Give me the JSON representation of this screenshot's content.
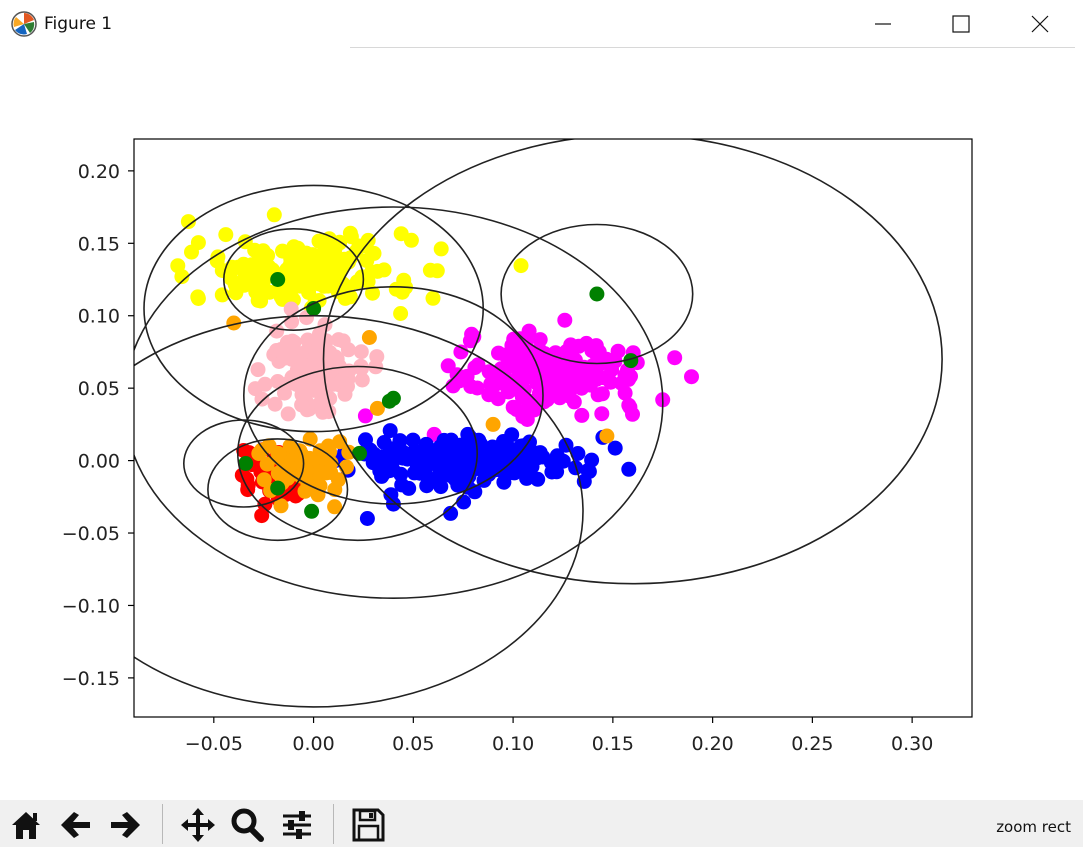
{
  "window": {
    "title": "Figure 1",
    "app_icon": "matplotlib-icon",
    "controls": [
      {
        "name": "minimize-button",
        "icon": "minimize-icon"
      },
      {
        "name": "maximize-button",
        "icon": "maximize-icon"
      },
      {
        "name": "close-button",
        "icon": "close-icon"
      }
    ]
  },
  "toolbar": {
    "buttons": [
      {
        "name": "home-button",
        "icon": "home-icon"
      },
      {
        "name": "back-button",
        "icon": "arrow-left-icon"
      },
      {
        "name": "forward-button",
        "icon": "arrow-right-icon"
      },
      {
        "name": "pan-button",
        "icon": "move-icon"
      },
      {
        "name": "zoom-button",
        "icon": "magnifier-icon"
      },
      {
        "name": "configure-subplots-button",
        "icon": "sliders-icon"
      },
      {
        "name": "save-button",
        "icon": "floppy-disk-icon"
      }
    ],
    "status": "zoom rect"
  },
  "chart_data": {
    "type": "scatter",
    "title": "",
    "xlabel": "",
    "ylabel": "",
    "xlim": [
      -0.09,
      0.33
    ],
    "ylim": [
      -0.177,
      0.222
    ],
    "grid": false,
    "legend": "none",
    "x_ticks": [
      -0.05,
      0.0,
      0.05,
      0.1,
      0.15,
      0.2,
      0.25,
      0.3
    ],
    "x_tick_labels": [
      "−0.05",
      "0.00",
      "0.05",
      "0.10",
      "0.15",
      "0.20",
      "0.25",
      "0.30"
    ],
    "y_ticks": [
      0.2,
      0.15,
      0.1,
      0.05,
      0.0,
      -0.05,
      -0.1,
      -0.15
    ],
    "y_tick_labels": [
      "0.20",
      "0.15",
      "0.10",
      "0.05",
      "0.00",
      "−0.05",
      "−0.10",
      "−0.15"
    ],
    "clusters": [
      {
        "color": "#ffff00",
        "center": [
          -0.005,
          0.13
        ],
        "spread": [
          0.028,
          0.012
        ],
        "count": 180
      },
      {
        "color": "#ff00ff",
        "center": [
          0.12,
          0.06
        ],
        "spread": [
          0.022,
          0.012
        ],
        "count": 180
      },
      {
        "color": "#0000ff",
        "center": [
          0.075,
          0.0
        ],
        "spread": [
          0.028,
          0.009
        ],
        "count": 240
      },
      {
        "color": "#ffb6c1",
        "center": [
          0.0,
          0.065
        ],
        "spread": [
          0.012,
          0.014
        ],
        "count": 120
      },
      {
        "color": "#ff0000",
        "center": [
          -0.02,
          -0.01
        ],
        "spread": [
          0.008,
          0.01
        ],
        "count": 45
      },
      {
        "color": "#ffa500",
        "center": [
          -0.005,
          -0.005
        ],
        "spread": [
          0.01,
          0.01
        ],
        "count": 70
      }
    ],
    "outliers": [
      {
        "color": "#ffff00",
        "x": -0.044,
        "y": 0.156
      },
      {
        "color": "#ffff00",
        "x": -0.066,
        "y": 0.127
      },
      {
        "color": "#ffff00",
        "x": 0.062,
        "y": 0.131
      },
      {
        "color": "#ffff00",
        "x": -0.058,
        "y": 0.113
      },
      {
        "color": "#ff00ff",
        "x": 0.181,
        "y": 0.071
      },
      {
        "color": "#ff00ff",
        "x": 0.175,
        "y": 0.042
      },
      {
        "color": "#ff00ff",
        "x": 0.073,
        "y": 0.055
      },
      {
        "color": "#0000ff",
        "x": 0.158,
        "y": -0.006
      },
      {
        "color": "#0000ff",
        "x": 0.027,
        "y": -0.04
      },
      {
        "color": "#0000ff",
        "x": 0.145,
        "y": 0.016
      },
      {
        "color": "#0000ff",
        "x": 0.04,
        "y": -0.03
      },
      {
        "color": "#ff0000",
        "x": -0.026,
        "y": -0.038
      },
      {
        "color": "#ff0000",
        "x": -0.033,
        "y": -0.02
      },
      {
        "color": "#ffa500",
        "x": 0.032,
        "y": 0.036
      },
      {
        "color": "#ffa500",
        "x": 0.147,
        "y": 0.017
      },
      {
        "color": "#ffa500",
        "x": 0.09,
        "y": 0.025
      },
      {
        "color": "#ffa500",
        "x": -0.04,
        "y": 0.095
      },
      {
        "color": "#ffa500",
        "x": 0.028,
        "y": 0.085
      }
    ],
    "centers": {
      "color": "#008000",
      "points": [
        {
          "x": -0.018,
          "y": 0.125
        },
        {
          "x": 0.0,
          "y": 0.105
        },
        {
          "x": 0.142,
          "y": 0.115
        },
        {
          "x": 0.159,
          "y": 0.069
        },
        {
          "x": 0.038,
          "y": 0.041
        },
        {
          "x": 0.04,
          "y": 0.043
        },
        {
          "x": 0.023,
          "y": 0.005
        },
        {
          "x": -0.034,
          "y": -0.002
        },
        {
          "x": -0.018,
          "y": -0.019
        },
        {
          "x": -0.001,
          "y": -0.035
        }
      ]
    },
    "circles": [
      {
        "cx": -0.01,
        "cy": 0.125,
        "r": 0.035
      },
      {
        "cx": 0.0,
        "cy": 0.105,
        "r": 0.085
      },
      {
        "cx": 0.142,
        "cy": 0.115,
        "r": 0.048
      },
      {
        "cx": 0.16,
        "cy": 0.07,
        "r": 0.155
      },
      {
        "cx": 0.04,
        "cy": 0.045,
        "r": 0.075
      },
      {
        "cx": 0.022,
        "cy": 0.005,
        "r": 0.06
      },
      {
        "cx": -0.035,
        "cy": -0.002,
        "r": 0.03
      },
      {
        "cx": -0.018,
        "cy": -0.02,
        "r": 0.035
      },
      {
        "cx": 0.0,
        "cy": -0.035,
        "r": 0.135
      },
      {
        "cx": 0.04,
        "cy": 0.04,
        "r": 0.135
      }
    ]
  }
}
